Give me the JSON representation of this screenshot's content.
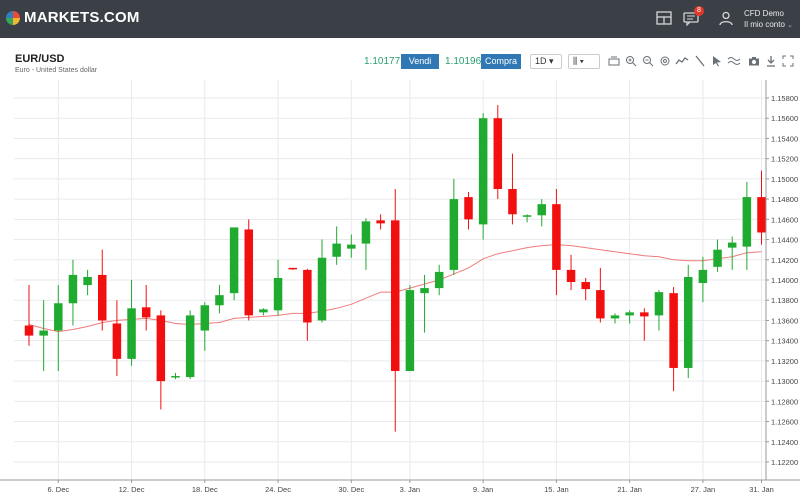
{
  "brand": {
    "name": "MARKETS.COM"
  },
  "header": {
    "notifications_count": "8",
    "account_type": "CFD Demo",
    "account_menu": "Il mio conto"
  },
  "instrument": {
    "symbol": "EUR/USD",
    "description": "Euro - United States dollar",
    "sell_price": "1.10177",
    "sell_label": "Vendi",
    "buy_price": "1.10196",
    "buy_label": "Compra",
    "timeframe": "1D"
  },
  "toolbar_icons": [
    "layout-icon",
    "bar-type-icon",
    "crosshair-icon",
    "zoom-in-icon",
    "zoom-out-icon",
    "settings-icon",
    "indicator-icon",
    "draw-line-icon",
    "cursor-icon",
    "compare-icon",
    "camera-icon",
    "download-icon",
    "fullscreen-icon"
  ],
  "colors": {
    "up": "#1fab2f",
    "down": "#f20f0f",
    "ma": "#f07b7b",
    "grid": "#e8eaec"
  },
  "chart_data": {
    "type": "candlestick",
    "ylim": [
      1.122,
      1.158
    ],
    "y_ticks": [
      "1.15800",
      "1.15600",
      "1.15400",
      "1.15200",
      "1.15000",
      "1.14800",
      "1.14600",
      "1.14400",
      "1.14200",
      "1.14000",
      "1.13800",
      "1.13600",
      "1.13400",
      "1.13200",
      "1.13000",
      "1.12800",
      "1.12600",
      "1.12400",
      "1.12200"
    ],
    "x_ticks": [
      "6. Dec",
      "12. Dec",
      "18. Dec",
      "24. Dec",
      "30. Dec",
      "3. Jan",
      "9. Jan",
      "15. Jan",
      "21. Jan",
      "27. Jan",
      "31. Jan"
    ],
    "candles": [
      {
        "o": 1.1355,
        "h": 1.1395,
        "l": 1.1335,
        "c": 1.1345
      },
      {
        "o": 1.1345,
        "h": 1.138,
        "l": 1.131,
        "c": 1.135
      },
      {
        "o": 1.135,
        "h": 1.1395,
        "l": 1.131,
        "c": 1.1377
      },
      {
        "o": 1.1377,
        "h": 1.142,
        "l": 1.1355,
        "c": 1.1405
      },
      {
        "o": 1.1395,
        "h": 1.141,
        "l": 1.1385,
        "c": 1.1403
      },
      {
        "o": 1.1405,
        "h": 1.143,
        "l": 1.135,
        "c": 1.136
      },
      {
        "o": 1.1357,
        "h": 1.138,
        "l": 1.1305,
        "c": 1.1322
      },
      {
        "o": 1.1322,
        "h": 1.14,
        "l": 1.1315,
        "c": 1.1372
      },
      {
        "o": 1.1373,
        "h": 1.1395,
        "l": 1.135,
        "c": 1.1363
      },
      {
        "o": 1.1365,
        "h": 1.137,
        "l": 1.1272,
        "c": 1.13
      },
      {
        "o": 1.1305,
        "h": 1.1308,
        "l": 1.1302,
        "c": 1.1305
      },
      {
        "o": 1.1304,
        "h": 1.137,
        "l": 1.1302,
        "c": 1.1365
      },
      {
        "o": 1.135,
        "h": 1.1378,
        "l": 1.133,
        "c": 1.1375
      },
      {
        "o": 1.1375,
        "h": 1.1395,
        "l": 1.1367,
        "c": 1.1385
      },
      {
        "o": 1.1387,
        "h": 1.1452,
        "l": 1.138,
        "c": 1.1452
      },
      {
        "o": 1.145,
        "h": 1.146,
        "l": 1.136,
        "c": 1.1365
      },
      {
        "o": 1.1368,
        "h": 1.1372,
        "l": 1.1365,
        "c": 1.1371
      },
      {
        "o": 1.137,
        "h": 1.142,
        "l": 1.1365,
        "c": 1.1402
      },
      {
        "o": 1.1412,
        "h": 1.1412,
        "l": 1.141,
        "c": 1.1411
      },
      {
        "o": 1.141,
        "h": 1.1411,
        "l": 1.134,
        "c": 1.1358
      },
      {
        "o": 1.136,
        "h": 1.144,
        "l": 1.1358,
        "c": 1.1422
      },
      {
        "o": 1.1423,
        "h": 1.1453,
        "l": 1.1415,
        "c": 1.1436
      },
      {
        "o": 1.1431,
        "h": 1.1445,
        "l": 1.1422,
        "c": 1.1435
      },
      {
        "o": 1.1436,
        "h": 1.1461,
        "l": 1.141,
        "c": 1.1458
      },
      {
        "o": 1.1459,
        "h": 1.1465,
        "l": 1.145,
        "c": 1.1456
      },
      {
        "o": 1.1459,
        "h": 1.149,
        "l": 1.125,
        "c": 1.131
      },
      {
        "o": 1.131,
        "h": 1.1395,
        "l": 1.131,
        "c": 1.139
      },
      {
        "o": 1.1387,
        "h": 1.1405,
        "l": 1.1348,
        "c": 1.1392
      },
      {
        "o": 1.1392,
        "h": 1.1415,
        "l": 1.1385,
        "c": 1.1408
      },
      {
        "o": 1.141,
        "h": 1.15,
        "l": 1.1405,
        "c": 1.148
      },
      {
        "o": 1.1482,
        "h": 1.1487,
        "l": 1.145,
        "c": 1.146
      },
      {
        "o": 1.1455,
        "h": 1.1565,
        "l": 1.144,
        "c": 1.156
      },
      {
        "o": 1.156,
        "h": 1.1573,
        "l": 1.148,
        "c": 1.149
      },
      {
        "o": 1.149,
        "h": 1.1525,
        "l": 1.1455,
        "c": 1.1465
      },
      {
        "o": 1.1463,
        "h": 1.1465,
        "l": 1.1457,
        "c": 1.1464
      },
      {
        "o": 1.1464,
        "h": 1.148,
        "l": 1.1453,
        "c": 1.1475
      },
      {
        "o": 1.1475,
        "h": 1.149,
        "l": 1.1385,
        "c": 1.141
      },
      {
        "o": 1.141,
        "h": 1.1425,
        "l": 1.139,
        "c": 1.1398
      },
      {
        "o": 1.1398,
        "h": 1.1402,
        "l": 1.138,
        "c": 1.1391
      },
      {
        "o": 1.139,
        "h": 1.1412,
        "l": 1.1358,
        "c": 1.1362
      },
      {
        "o": 1.1362,
        "h": 1.1367,
        "l": 1.1357,
        "c": 1.1365
      },
      {
        "o": 1.1365,
        "h": 1.137,
        "l": 1.1357,
        "c": 1.1368
      },
      {
        "o": 1.1368,
        "h": 1.1372,
        "l": 1.134,
        "c": 1.1364
      },
      {
        "o": 1.1365,
        "h": 1.139,
        "l": 1.135,
        "c": 1.1388
      },
      {
        "o": 1.1387,
        "h": 1.1393,
        "l": 1.129,
        "c": 1.1313
      },
      {
        "o": 1.1313,
        "h": 1.1415,
        "l": 1.1303,
        "c": 1.1403
      },
      {
        "o": 1.1397,
        "h": 1.1423,
        "l": 1.1378,
        "c": 1.141
      },
      {
        "o": 1.1413,
        "h": 1.144,
        "l": 1.1408,
        "c": 1.143
      },
      {
        "o": 1.1432,
        "h": 1.1443,
        "l": 1.141,
        "c": 1.1437
      },
      {
        "o": 1.1433,
        "h": 1.1497,
        "l": 1.141,
        "c": 1.1482
      },
      {
        "o": 1.1482,
        "h": 1.1508,
        "l": 1.1435,
        "c": 1.1447
      }
    ],
    "moving_average": [
      1.1356,
      1.1352,
      1.1349,
      1.1351,
      1.1354,
      1.1358,
      1.136,
      1.1361,
      1.1362,
      1.136,
      1.1357,
      1.1356,
      1.1357,
      1.1358,
      1.1362,
      1.1363,
      1.1364,
      1.1365,
      1.1367,
      1.1367,
      1.1369,
      1.1372,
      1.1376,
      1.1382,
      1.1388,
      1.1388,
      1.1392,
      1.1396,
      1.14,
      1.1406,
      1.1412,
      1.1421,
      1.1426,
      1.1429,
      1.1432,
      1.1434,
      1.1435,
      1.1434,
      1.1432,
      1.143,
      1.1428,
      1.1426,
      1.1424,
      1.1423,
      1.142,
      1.1419,
      1.1419,
      1.1421,
      1.1423,
      1.1427,
      1.1428
    ]
  }
}
